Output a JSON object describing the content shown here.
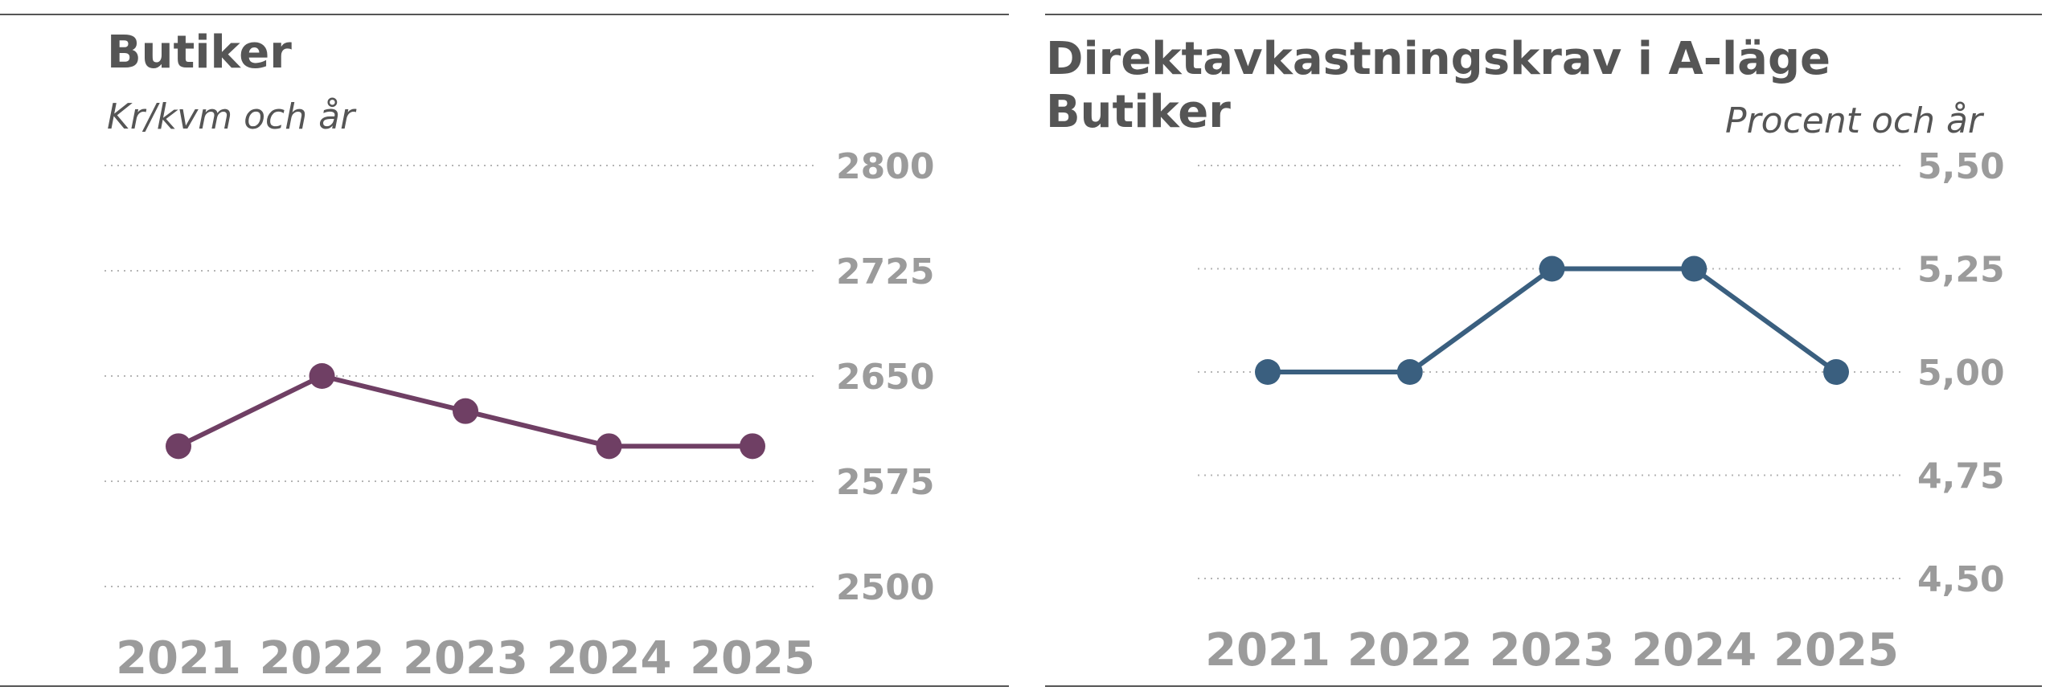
{
  "chart_data": [
    {
      "type": "line",
      "title": "Butiker",
      "subtitle": "Kr/kvm och år",
      "categories": [
        "2021",
        "2022",
        "2023",
        "2024",
        "2025"
      ],
      "series": [
        {
          "values": [
            2600,
            2650,
            2625,
            2600,
            2600
          ],
          "color": "#6f3f64"
        }
      ],
      "ylim": [
        2500,
        2800
      ],
      "yticks": [
        "2800",
        "2725",
        "2650",
        "2575",
        "2500"
      ],
      "grid": true,
      "grid_style": "dotted"
    },
    {
      "type": "line",
      "title": "Direktavkastningskrav i A-läge",
      "title_line2": "Butiker",
      "subtitle": "Procent och år",
      "categories": [
        "2021",
        "2022",
        "2023",
        "2024",
        "2025"
      ],
      "series": [
        {
          "values": [
            5.0,
            5.0,
            5.25,
            5.25,
            5.0
          ],
          "color": "#3a5f7f"
        }
      ],
      "ylim": [
        4.5,
        5.5
      ],
      "yticks": [
        "5,50",
        "5,25",
        "5,00",
        "4,75",
        "4,50"
      ],
      "grid": true,
      "grid_style": "dotted"
    }
  ]
}
